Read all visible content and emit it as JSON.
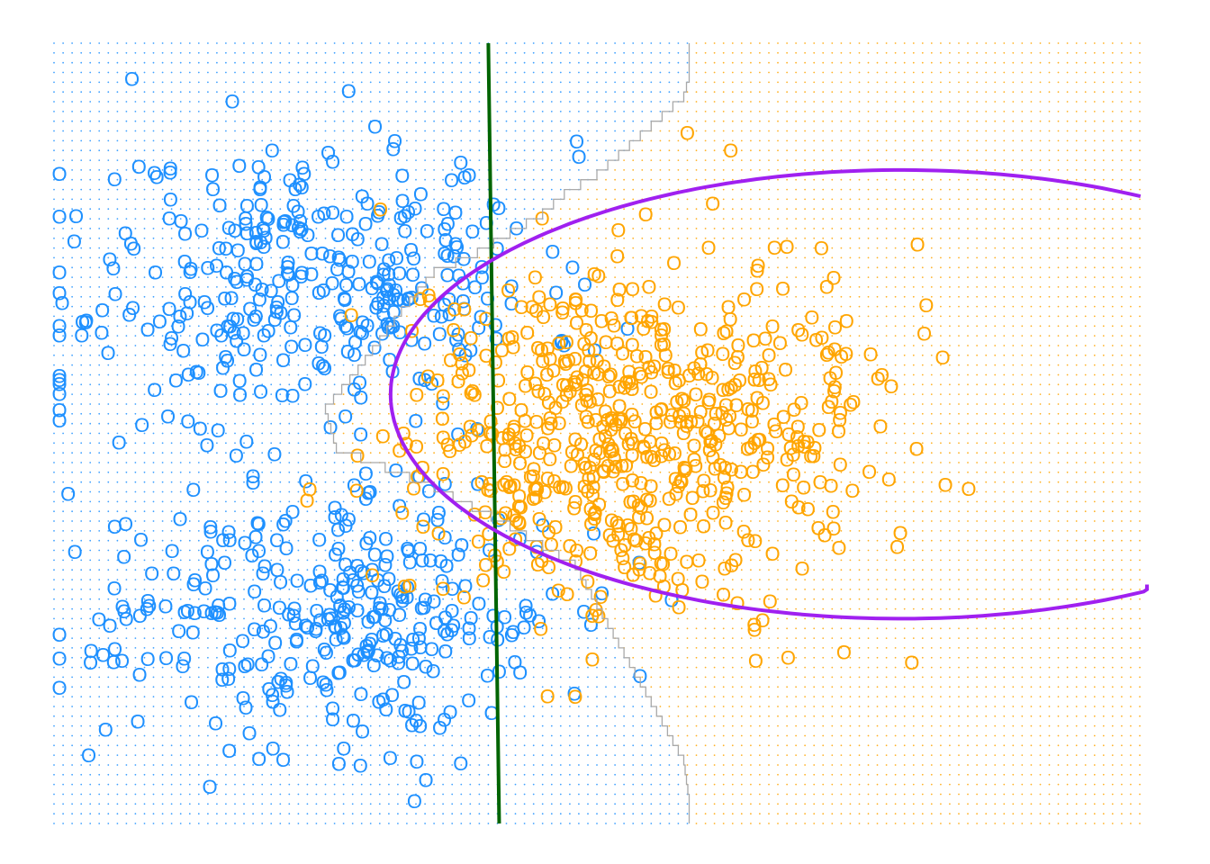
{
  "chart_data": {
    "type": "scatter",
    "title": "",
    "xlabel": "",
    "ylabel": "",
    "xlim": [
      -4.0,
      6.0
    ],
    "ylim": [
      -4.0,
      4.0
    ],
    "grid": false,
    "axes_visible": false,
    "legend": "none",
    "colors": {
      "class_blue": "#1e90ff",
      "class_orange": "#ffa500",
      "grid_blue": "#1e90ff",
      "grid_orange": "#ffa500",
      "knn_boundary": "#a9a9a9",
      "linear_boundary": "#006400",
      "quadratic_boundary": "#a020f0"
    },
    "marker": "O",
    "background_grid": {
      "x_steps": 120,
      "y_steps": 80,
      "blue_region_x_max_profile": [
        [
          4.0,
          0.05
        ],
        [
          3.6,
          0.05
        ],
        [
          3.4,
          0.0
        ],
        [
          3.2,
          -0.2
        ],
        [
          3.0,
          -0.4
        ],
        [
          2.8,
          -0.6
        ],
        [
          2.6,
          -0.8
        ],
        [
          2.4,
          -1.1
        ],
        [
          2.2,
          -1.3
        ],
        [
          2.0,
          -1.6
        ],
        [
          1.8,
          -1.9
        ],
        [
          1.6,
          -2.3
        ],
        [
          1.2,
          -2.6
        ],
        [
          0.6,
          -3.0
        ],
        [
          0.2,
          -3.3
        ],
        [
          -0.2,
          -3.2
        ],
        [
          -0.6,
          -2.3
        ],
        [
          -1.0,
          -1.6
        ],
        [
          -1.4,
          -1.0
        ],
        [
          -1.8,
          -0.8
        ],
        [
          -2.2,
          -0.6
        ],
        [
          -2.6,
          -0.4
        ],
        [
          -3.0,
          -0.2
        ],
        [
          -3.4,
          0.0
        ],
        [
          -3.8,
          0.05
        ],
        [
          -4.0,
          0.05
        ]
      ]
    },
    "boundaries": {
      "linear": [
        [
          0.0,
          4.0
        ],
        [
          0.1,
          -4.0
        ]
      ],
      "quadratic_ellipse": {
        "center": [
          3.8,
          0.4
        ],
        "rx": 4.7,
        "ry": 2.3,
        "theta_start_deg": -58,
        "theta_end_deg": 62
      }
    },
    "series": [
      {
        "name": "",
        "color": "#1e90ff",
        "clusters": [
          {
            "cx": -1.5,
            "cy": 1.6,
            "sx": 1.0,
            "sy": 0.7,
            "n": 330
          },
          {
            "cx": -1.4,
            "cy": -1.8,
            "sx": 1.0,
            "sy": 0.7,
            "n": 330
          },
          {
            "cx": -3.5,
            "cy": 0.0,
            "sx": 0.6,
            "sy": 1.8,
            "n": 40
          }
        ],
        "seed": 11
      },
      {
        "name": "",
        "color": "#ffa500",
        "clusters": [
          {
            "cx": 1.3,
            "cy": 0.0,
            "sx": 1.1,
            "sy": 0.9,
            "n": 620
          }
        ],
        "seed": 29
      }
    ]
  }
}
